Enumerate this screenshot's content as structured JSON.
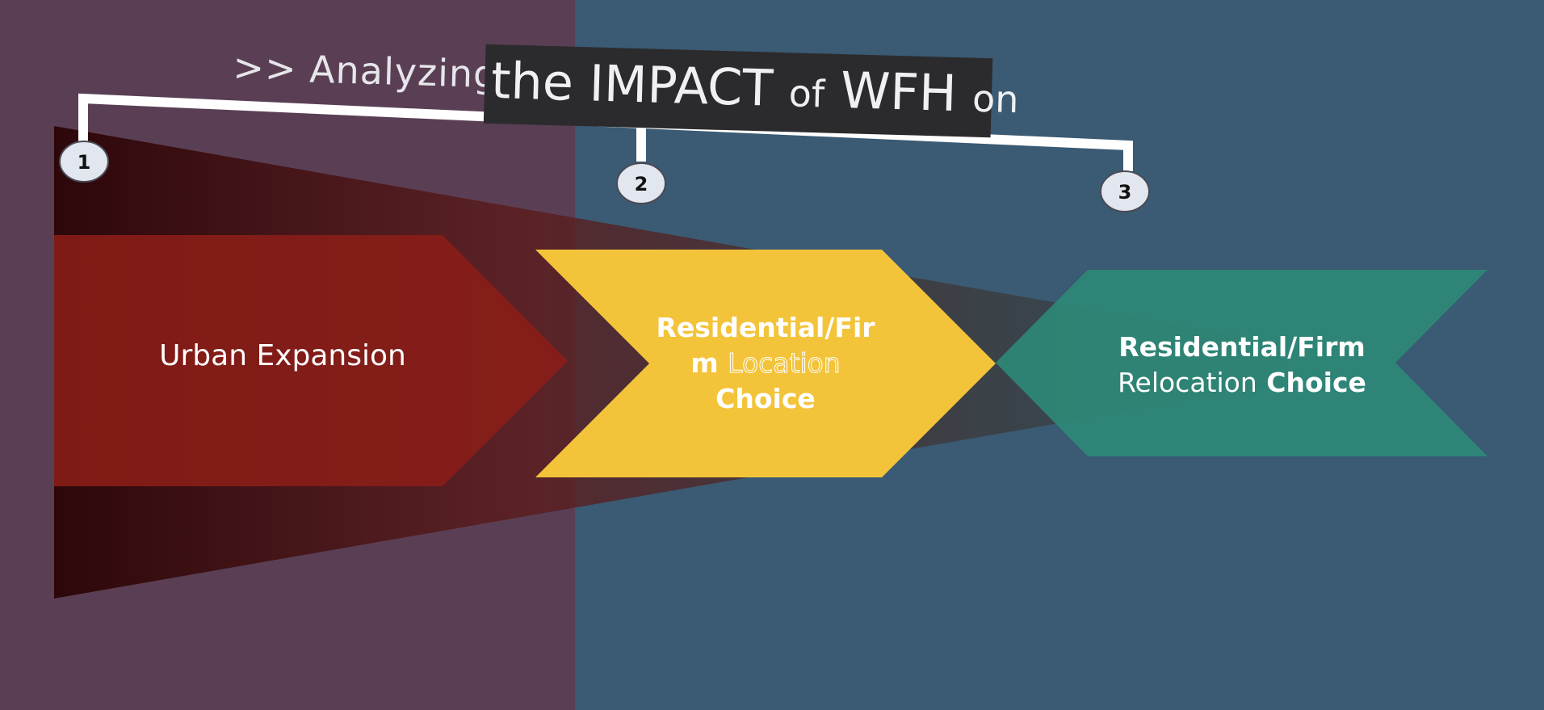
{
  "title": {
    "prefix": ">> Analyzing",
    "part_the_impact": "the IMPACT",
    "part_of": "of",
    "part_wfh": "WFH",
    "part_on": "on"
  },
  "steps": [
    {
      "number": "1",
      "label": "Urban Expansion"
    },
    {
      "number": "2",
      "line1": "Residential/Firm ",
      "highlight": "Location",
      "line3": "Choice"
    },
    {
      "number": "3",
      "line1": "Residential/Firm",
      "highlight": "Relocation",
      "line2_end": "Choice"
    }
  ],
  "colors": {
    "left_panel": "#5a3f54",
    "right_panel": "#3b5a73",
    "step1": "#8b1e18",
    "step2": "#f3c43a",
    "step3": "#2e8a78",
    "badge": "#e2e6ee"
  }
}
